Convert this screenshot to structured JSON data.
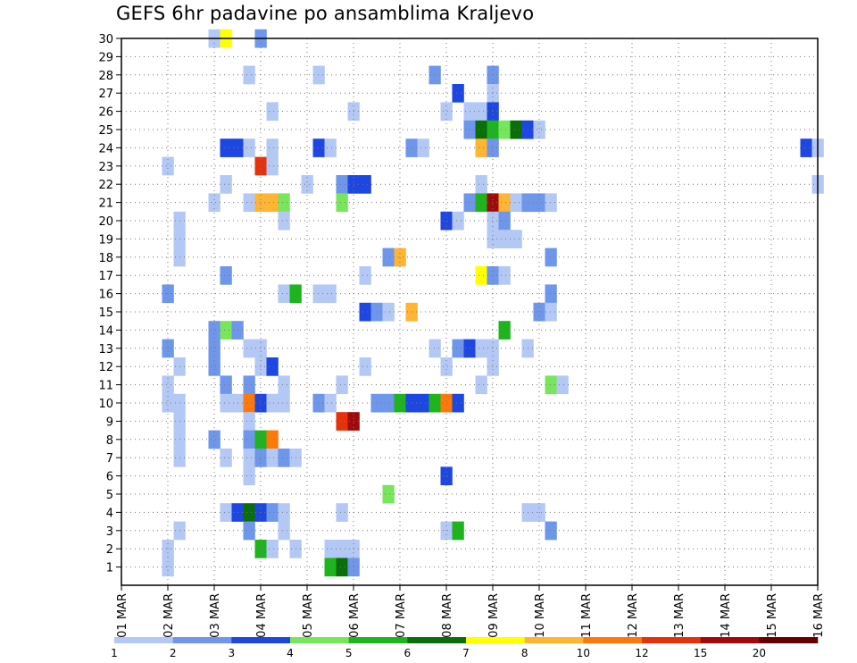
{
  "chart_data": {
    "type": "heatmap",
    "title": "GEFS 6hr padavine po ansamblima Kraljevo",
    "xlabel": "",
    "ylabel": "",
    "x_tick_labels": [
      "01 MAR",
      "02 MAR",
      "03 MAR",
      "04 MAR",
      "05 MAR",
      "06 MAR",
      "07 MAR",
      "08 MAR",
      "09 MAR",
      "10 MAR",
      "11 MAR",
      "12 MAR",
      "13 MAR",
      "14 MAR",
      "15 MAR",
      "16 MAR"
    ],
    "y_tick_labels": [
      "1",
      "2",
      "3",
      "4",
      "5",
      "6",
      "7",
      "8",
      "9",
      "10",
      "11",
      "12",
      "13",
      "14",
      "15",
      "16",
      "17",
      "18",
      "19",
      "20",
      "21",
      "22",
      "23",
      "24",
      "25",
      "26",
      "27",
      "28",
      "29",
      "30"
    ],
    "xlim": [
      0,
      60
    ],
    "ylim": [
      0,
      30
    ],
    "x_units": "6-hour steps from 01 MAR 00Z",
    "grid": true,
    "legend_placement": "bottom",
    "colorbar": {
      "labels": [
        "1",
        "2",
        "3",
        "4",
        "5",
        "6",
        "7",
        "8",
        "10",
        "12",
        "15",
        "20"
      ],
      "colors": [
        "#b4c8f5",
        "#6e96eb",
        "#1e46e1",
        "#78e65a",
        "#1eb41e",
        "#0a6e0a",
        "#ffff00",
        "#ffb432",
        "#ff780a",
        "#e6320a",
        "#a00a0a",
        "#640000"
      ]
    },
    "cells": [
      {
        "t": 8,
        "m": 30,
        "c": 1
      },
      {
        "t": 9,
        "m": 30,
        "c": 7
      },
      {
        "t": 12,
        "m": 30,
        "c": 2
      },
      {
        "t": 11,
        "m": 28,
        "c": 1
      },
      {
        "t": 17,
        "m": 28,
        "c": 1
      },
      {
        "t": 27,
        "m": 28,
        "c": 2
      },
      {
        "t": 32,
        "m": 28,
        "c": 2
      },
      {
        "t": 32,
        "m": 27,
        "c": 1
      },
      {
        "t": 29,
        "m": 27,
        "c": 3
      },
      {
        "t": 13,
        "m": 26,
        "c": 1
      },
      {
        "t": 20,
        "m": 26,
        "c": 1
      },
      {
        "t": 28,
        "m": 26,
        "c": 1
      },
      {
        "t": 30,
        "m": 26,
        "c": 1
      },
      {
        "t": 31,
        "m": 26,
        "c": 1
      },
      {
        "t": 32,
        "m": 26,
        "c": 3
      },
      {
        "t": 30,
        "m": 25,
        "c": 2
      },
      {
        "t": 31,
        "m": 25,
        "c": 6
      },
      {
        "t": 32,
        "m": 25,
        "c": 5
      },
      {
        "t": 33,
        "m": 25,
        "c": 4
      },
      {
        "t": 34,
        "m": 25,
        "c": 6
      },
      {
        "t": 35,
        "m": 25,
        "c": 3
      },
      {
        "t": 36,
        "m": 25,
        "c": 1
      },
      {
        "t": 9,
        "m": 24,
        "c": 3
      },
      {
        "t": 10,
        "m": 24,
        "c": 3
      },
      {
        "t": 11,
        "m": 24,
        "c": 1
      },
      {
        "t": 13,
        "m": 24,
        "c": 1
      },
      {
        "t": 17,
        "m": 24,
        "c": 3
      },
      {
        "t": 18,
        "m": 24,
        "c": 1
      },
      {
        "t": 25,
        "m": 24,
        "c": 2
      },
      {
        "t": 26,
        "m": 24,
        "c": 1
      },
      {
        "t": 31,
        "m": 24,
        "c": 8
      },
      {
        "t": 32,
        "m": 24,
        "c": 2
      },
      {
        "t": 59,
        "m": 24,
        "c": 3
      },
      {
        "t": 60,
        "m": 24,
        "c": 1
      },
      {
        "t": 4,
        "m": 23,
        "c": 1
      },
      {
        "t": 12,
        "m": 23,
        "c": 10
      },
      {
        "t": 13,
        "m": 23,
        "c": 1
      },
      {
        "t": 9,
        "m": 22,
        "c": 1
      },
      {
        "t": 16,
        "m": 22,
        "c": 1
      },
      {
        "t": 19,
        "m": 22,
        "c": 2
      },
      {
        "t": 20,
        "m": 22,
        "c": 3
      },
      {
        "t": 21,
        "m": 22,
        "c": 3
      },
      {
        "t": 31,
        "m": 22,
        "c": 1
      },
      {
        "t": 60,
        "m": 22,
        "c": 1
      },
      {
        "t": 8,
        "m": 21,
        "c": 1
      },
      {
        "t": 11,
        "m": 21,
        "c": 1
      },
      {
        "t": 12,
        "m": 21,
        "c": 8
      },
      {
        "t": 13,
        "m": 21,
        "c": 8
      },
      {
        "t": 14,
        "m": 21,
        "c": 4
      },
      {
        "t": 19,
        "m": 21,
        "c": 4
      },
      {
        "t": 30,
        "m": 21,
        "c": 2
      },
      {
        "t": 31,
        "m": 21,
        "c": 5
      },
      {
        "t": 32,
        "m": 21,
        "c": 11
      },
      {
        "t": 33,
        "m": 21,
        "c": 8
      },
      {
        "t": 34,
        "m": 21,
        "c": 1
      },
      {
        "t": 35,
        "m": 21,
        "c": 2
      },
      {
        "t": 36,
        "m": 21,
        "c": 2
      },
      {
        "t": 37,
        "m": 21,
        "c": 1
      },
      {
        "t": 5,
        "m": 20,
        "c": 1
      },
      {
        "t": 14,
        "m": 20,
        "c": 1
      },
      {
        "t": 28,
        "m": 20,
        "c": 3
      },
      {
        "t": 29,
        "m": 20,
        "c": 1
      },
      {
        "t": 32,
        "m": 20,
        "c": 1
      },
      {
        "t": 33,
        "m": 20,
        "c": 2
      },
      {
        "t": 5,
        "m": 19,
        "c": 1
      },
      {
        "t": 32,
        "m": 19,
        "c": 1
      },
      {
        "t": 33,
        "m": 19,
        "c": 1
      },
      {
        "t": 34,
        "m": 19,
        "c": 1
      },
      {
        "t": 5,
        "m": 18,
        "c": 1
      },
      {
        "t": 23,
        "m": 18,
        "c": 2
      },
      {
        "t": 24,
        "m": 18,
        "c": 8
      },
      {
        "t": 37,
        "m": 18,
        "c": 2
      },
      {
        "t": 9,
        "m": 17,
        "c": 2
      },
      {
        "t": 21,
        "m": 17,
        "c": 1
      },
      {
        "t": 31,
        "m": 17,
        "c": 7
      },
      {
        "t": 32,
        "m": 17,
        "c": 2
      },
      {
        "t": 33,
        "m": 17,
        "c": 1
      },
      {
        "t": 4,
        "m": 16,
        "c": 2
      },
      {
        "t": 14,
        "m": 16,
        "c": 1
      },
      {
        "t": 15,
        "m": 16,
        "c": 5
      },
      {
        "t": 17,
        "m": 16,
        "c": 1
      },
      {
        "t": 18,
        "m": 16,
        "c": 1
      },
      {
        "t": 37,
        "m": 16,
        "c": 2
      },
      {
        "t": 21,
        "m": 15,
        "c": 3
      },
      {
        "t": 22,
        "m": 15,
        "c": 2
      },
      {
        "t": 23,
        "m": 15,
        "c": 1
      },
      {
        "t": 25,
        "m": 15,
        "c": 8
      },
      {
        "t": 36,
        "m": 15,
        "c": 2
      },
      {
        "t": 37,
        "m": 15,
        "c": 1
      },
      {
        "t": 8,
        "m": 14,
        "c": 2
      },
      {
        "t": 9,
        "m": 14,
        "c": 4
      },
      {
        "t": 10,
        "m": 14,
        "c": 2
      },
      {
        "t": 33,
        "m": 14,
        "c": 5
      },
      {
        "t": 4,
        "m": 13,
        "c": 2
      },
      {
        "t": 8,
        "m": 13,
        "c": 2
      },
      {
        "t": 11,
        "m": 13,
        "c": 1
      },
      {
        "t": 12,
        "m": 13,
        "c": 1
      },
      {
        "t": 27,
        "m": 13,
        "c": 1
      },
      {
        "t": 29,
        "m": 13,
        "c": 2
      },
      {
        "t": 30,
        "m": 13,
        "c": 3
      },
      {
        "t": 31,
        "m": 13,
        "c": 1
      },
      {
        "t": 32,
        "m": 13,
        "c": 1
      },
      {
        "t": 35,
        "m": 13,
        "c": 1
      },
      {
        "t": 5,
        "m": 12,
        "c": 1
      },
      {
        "t": 8,
        "m": 12,
        "c": 2
      },
      {
        "t": 12,
        "m": 12,
        "c": 1
      },
      {
        "t": 13,
        "m": 12,
        "c": 3
      },
      {
        "t": 21,
        "m": 12,
        "c": 1
      },
      {
        "t": 28,
        "m": 12,
        "c": 1
      },
      {
        "t": 32,
        "m": 12,
        "c": 1
      },
      {
        "t": 4,
        "m": 11,
        "c": 1
      },
      {
        "t": 9,
        "m": 11,
        "c": 2
      },
      {
        "t": 11,
        "m": 11,
        "c": 2
      },
      {
        "t": 14,
        "m": 11,
        "c": 1
      },
      {
        "t": 19,
        "m": 11,
        "c": 1
      },
      {
        "t": 31,
        "m": 11,
        "c": 1
      },
      {
        "t": 37,
        "m": 11,
        "c": 4
      },
      {
        "t": 38,
        "m": 11,
        "c": 1
      },
      {
        "t": 4,
        "m": 10,
        "c": 1
      },
      {
        "t": 5,
        "m": 10,
        "c": 1
      },
      {
        "t": 9,
        "m": 10,
        "c": 1
      },
      {
        "t": 10,
        "m": 10,
        "c": 1
      },
      {
        "t": 11,
        "m": 10,
        "c": 9
      },
      {
        "t": 12,
        "m": 10,
        "c": 3
      },
      {
        "t": 13,
        "m": 10,
        "c": 1
      },
      {
        "t": 14,
        "m": 10,
        "c": 1
      },
      {
        "t": 17,
        "m": 10,
        "c": 2
      },
      {
        "t": 18,
        "m": 10,
        "c": 1
      },
      {
        "t": 22,
        "m": 10,
        "c": 2
      },
      {
        "t": 23,
        "m": 10,
        "c": 2
      },
      {
        "t": 24,
        "m": 10,
        "c": 5
      },
      {
        "t": 25,
        "m": 10,
        "c": 3
      },
      {
        "t": 26,
        "m": 10,
        "c": 3
      },
      {
        "t": 27,
        "m": 10,
        "c": 5
      },
      {
        "t": 28,
        "m": 10,
        "c": 9
      },
      {
        "t": 29,
        "m": 10,
        "c": 3
      },
      {
        "t": 5,
        "m": 9,
        "c": 1
      },
      {
        "t": 11,
        "m": 9,
        "c": 1
      },
      {
        "t": 19,
        "m": 9,
        "c": 10
      },
      {
        "t": 20,
        "m": 9,
        "c": 11
      },
      {
        "t": 5,
        "m": 8,
        "c": 1
      },
      {
        "t": 8,
        "m": 8,
        "c": 2
      },
      {
        "t": 11,
        "m": 8,
        "c": 2
      },
      {
        "t": 12,
        "m": 8,
        "c": 5
      },
      {
        "t": 13,
        "m": 8,
        "c": 9
      },
      {
        "t": 5,
        "m": 7,
        "c": 1
      },
      {
        "t": 9,
        "m": 7,
        "c": 1
      },
      {
        "t": 11,
        "m": 7,
        "c": 1
      },
      {
        "t": 12,
        "m": 7,
        "c": 2
      },
      {
        "t": 13,
        "m": 7,
        "c": 1
      },
      {
        "t": 14,
        "m": 7,
        "c": 2
      },
      {
        "t": 15,
        "m": 7,
        "c": 1
      },
      {
        "t": 11,
        "m": 6,
        "c": 1
      },
      {
        "t": 28,
        "m": 6,
        "c": 3
      },
      {
        "t": 23,
        "m": 5,
        "c": 4
      },
      {
        "t": 9,
        "m": 4,
        "c": 1
      },
      {
        "t": 10,
        "m": 4,
        "c": 3
      },
      {
        "t": 11,
        "m": 4,
        "c": 6
      },
      {
        "t": 12,
        "m": 4,
        "c": 3
      },
      {
        "t": 13,
        "m": 4,
        "c": 2
      },
      {
        "t": 14,
        "m": 4,
        "c": 1
      },
      {
        "t": 19,
        "m": 4,
        "c": 1
      },
      {
        "t": 35,
        "m": 4,
        "c": 1
      },
      {
        "t": 36,
        "m": 4,
        "c": 1
      },
      {
        "t": 5,
        "m": 3,
        "c": 1
      },
      {
        "t": 11,
        "m": 3,
        "c": 2
      },
      {
        "t": 14,
        "m": 3,
        "c": 1
      },
      {
        "t": 28,
        "m": 3,
        "c": 1
      },
      {
        "t": 29,
        "m": 3,
        "c": 5
      },
      {
        "t": 37,
        "m": 3,
        "c": 2
      },
      {
        "t": 4,
        "m": 2,
        "c": 1
      },
      {
        "t": 12,
        "m": 2,
        "c": 5
      },
      {
        "t": 13,
        "m": 2,
        "c": 1
      },
      {
        "t": 15,
        "m": 2,
        "c": 1
      },
      {
        "t": 18,
        "m": 2,
        "c": 1
      },
      {
        "t": 19,
        "m": 2,
        "c": 1
      },
      {
        "t": 20,
        "m": 2,
        "c": 1
      },
      {
        "t": 4,
        "m": 1,
        "c": 1
      },
      {
        "t": 18,
        "m": 1,
        "c": 5
      },
      {
        "t": 19,
        "m": 1,
        "c": 6
      },
      {
        "t": 20,
        "m": 1,
        "c": 2
      }
    ]
  }
}
